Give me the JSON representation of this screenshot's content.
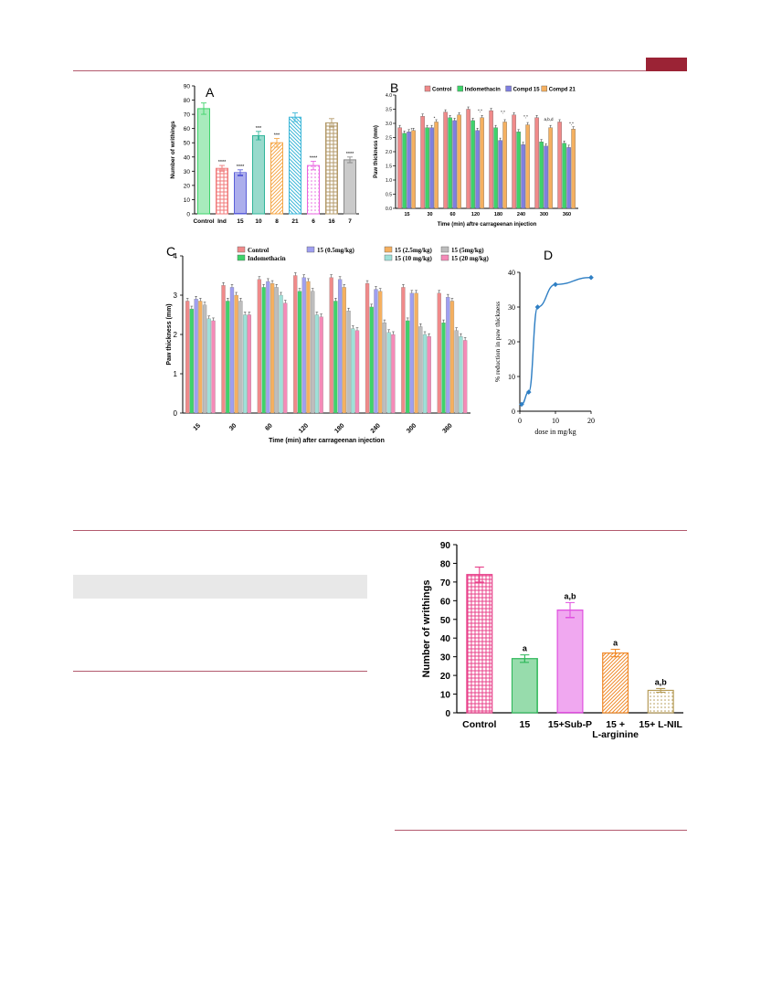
{
  "page": {
    "accent": "#9b2335",
    "rule": "#b35a6e",
    "table_header_bg": "#e8e8e8"
  },
  "chart_data": [
    {
      "id": "A",
      "panel_label": "A",
      "type": "bar",
      "categories": [
        "Control",
        "Ind",
        "15",
        "10",
        "8",
        "21",
        "6",
        "16",
        "7"
      ],
      "values": [
        74,
        32,
        29,
        55,
        50,
        68,
        34,
        64,
        38
      ],
      "errors": [
        4,
        2,
        2,
        3,
        3,
        3,
        3,
        3,
        2
      ],
      "sig": [
        "",
        "****",
        "****",
        "***",
        "***",
        "",
        "****",
        "",
        "****"
      ],
      "colors": [
        "#3ed36a",
        "#f07a7a",
        "#5a5ed8",
        "#32b59a",
        "#f5a84a",
        "#3bb6d8",
        "#e964e0",
        "#b39a6a",
        "#8a8a8a"
      ],
      "patterns": [
        "solid",
        "grid",
        "hstripe",
        "vstripe",
        "diag",
        "diag2",
        "dots",
        "grid",
        "solid"
      ],
      "ylabel": "Number of writhings",
      "ylim": [
        0,
        90
      ],
      "yticks": [
        0,
        10,
        20,
        30,
        40,
        50,
        60,
        70,
        80,
        90
      ]
    },
    {
      "id": "B",
      "panel_label": "B",
      "type": "bar",
      "categories": [
        "15",
        "30",
        "60",
        "120",
        "180",
        "240",
        "300",
        "360"
      ],
      "xlabel": "Time (min) aftre carrageenan injection",
      "ylabel": "Paw thickness (mm)",
      "ylim": [
        0,
        4
      ],
      "yticks": [
        "0.0",
        "0.5",
        "1.0",
        "1.5",
        "2.0",
        "2.5",
        "3.0",
        "3.5",
        "4.0"
      ],
      "series": [
        {
          "name": "Control",
          "color": "#f08a8a",
          "values": [
            2.85,
            3.25,
            3.4,
            3.5,
            3.45,
            3.3,
            3.2,
            3.05
          ]
        },
        {
          "name": "Indomethacin",
          "color": "#3ed36a",
          "values": [
            2.65,
            2.85,
            3.2,
            3.1,
            2.85,
            2.7,
            2.35,
            2.3
          ]
        },
        {
          "name": "Compd 15",
          "color": "#7f7fe0",
          "values": [
            2.7,
            2.85,
            3.1,
            2.75,
            2.4,
            2.25,
            2.2,
            2.15
          ]
        },
        {
          "name": "Compd 21",
          "color": "#f5b060",
          "values": [
            2.75,
            3.05,
            3.3,
            3.2,
            3.05,
            2.95,
            2.85,
            2.8
          ]
        }
      ],
      "annotations": [
        "*",
        "*",
        "",
        "*,*",
        "*,*",
        "*,*",
        "a,b,d",
        "*,*"
      ]
    },
    {
      "id": "C",
      "panel_label": "C",
      "type": "bar",
      "categories": [
        "15",
        "30",
        "60",
        "120",
        "180",
        "240",
        "300",
        "360"
      ],
      "xlabel": "Time (min) after carrageenan injection",
      "ylabel": "Paw thickness (mm)",
      "ylim": [
        0,
        4
      ],
      "yticks": [
        "0",
        "1",
        "2",
        "3",
        "4"
      ],
      "series": [
        {
          "name": "Control",
          "color": "#f08a8a",
          "values": [
            2.85,
            3.25,
            3.4,
            3.5,
            3.45,
            3.3,
            3.2,
            3.05
          ]
        },
        {
          "name": "Indomethacin",
          "color": "#3ed36a",
          "values": [
            2.65,
            2.85,
            3.2,
            3.1,
            2.85,
            2.7,
            2.35,
            2.3
          ]
        },
        {
          "name": "15 (0.5mg/kg)",
          "color": "#9f9ff0",
          "values": [
            2.9,
            3.2,
            3.35,
            3.45,
            3.4,
            3.15,
            3.05,
            2.95
          ]
        },
        {
          "name": "15 (2.5mg/kg)",
          "color": "#f5b060",
          "values": [
            2.85,
            3.0,
            3.3,
            3.35,
            3.2,
            3.1,
            3.05,
            2.85
          ]
        },
        {
          "name": "15 (5mg/kg)",
          "color": "#bdbdbd",
          "values": [
            2.75,
            2.85,
            3.2,
            3.1,
            2.6,
            2.3,
            2.2,
            2.1
          ]
        },
        {
          "name": "15 (10 mg/kg)",
          "color": "#9fe0d8",
          "values": [
            2.4,
            2.5,
            3.0,
            2.5,
            2.15,
            2.05,
            2.0,
            1.95
          ]
        },
        {
          "name": "15 (20 mg/kg)",
          "color": "#f58ab8",
          "values": [
            2.35,
            2.5,
            2.8,
            2.45,
            2.1,
            2.0,
            1.95,
            1.85
          ]
        }
      ]
    },
    {
      "id": "D",
      "panel_label": "D",
      "type": "line",
      "x": [
        0.5,
        2.5,
        5,
        10,
        20
      ],
      "y": [
        2,
        5.5,
        30,
        36.5,
        38.5
      ],
      "xlabel": "dose in mg/kg",
      "ylabel": "% reduction in paw thickness",
      "xlim": [
        0,
        20
      ],
      "ylim": [
        0,
        40
      ],
      "xticks": [
        "0",
        "10",
        "20"
      ],
      "yticks": [
        "0",
        "10",
        "20",
        "30",
        "40"
      ],
      "color": "#2f7fc4"
    },
    {
      "id": "E",
      "type": "bar",
      "categories": [
        "Control",
        "15",
        "15+Sub-P",
        "15 +\nL-arginine",
        "15+ L-NIL"
      ],
      "values": [
        74,
        29,
        55,
        32,
        12
      ],
      "errors": [
        4,
        2,
        4,
        2,
        1
      ],
      "labels": [
        "",
        "a",
        "a,b",
        "a",
        "a,b"
      ],
      "colors": [
        "#e8408a",
        "#2fb85a",
        "#e052e0",
        "#f08a2a",
        "#b59a55"
      ],
      "patterns": [
        "grid",
        "vstripe",
        "hstripe",
        "diag",
        "dots"
      ],
      "ylabel": "Number of writhings",
      "ylim": [
        0,
        90
      ],
      "yticks": [
        0,
        10,
        20,
        30,
        40,
        50,
        60,
        70,
        80,
        90
      ]
    }
  ]
}
